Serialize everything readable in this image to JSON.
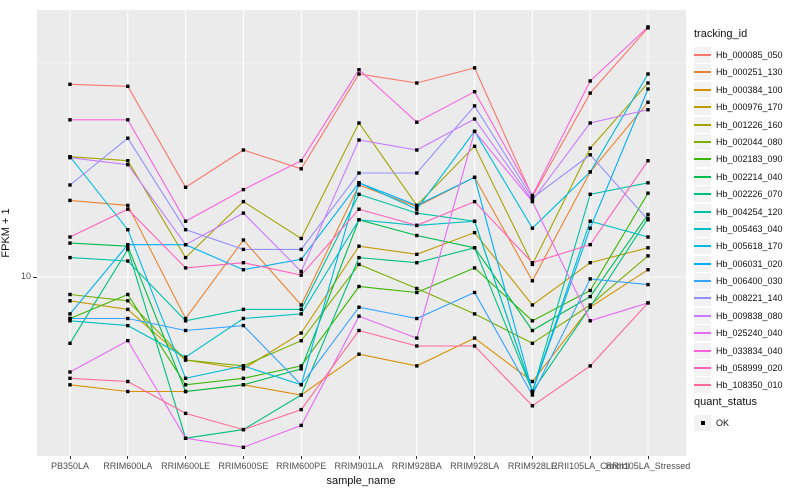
{
  "chart_data": {
    "type": "line",
    "title": "",
    "xlabel": "sample_name",
    "ylabel": "FPKM + 1",
    "y_scale": "log10",
    "y_tick_labels": [
      "10"
    ],
    "y_tick_values": [
      10
    ],
    "grid": true,
    "panel_bg": "#EBEBEB",
    "grid_color": "#FFFFFF",
    "marker": "black-square",
    "legend_position": "right",
    "categories": [
      "PB350LA",
      "RRIM600LA",
      "RRIM600LE",
      "RRIM600SE",
      "RRIM600PE",
      "RRIM901LA",
      "RRIM928BA",
      "RRIM928LA",
      "RRIM928LE",
      "RRII105LA_Control",
      "RRII105LA_Stressed"
    ],
    "series": [
      {
        "name": "Hb_000085_050",
        "color": "#F8766D",
        "values": [
          28.2,
          27.9,
          16.2,
          19.8,
          17.9,
          29.8,
          28.4,
          30.8,
          15.4,
          26.9,
          38.2
        ]
      },
      {
        "name": "Hb_000251_130",
        "color": "#EA8331",
        "values": [
          15.1,
          14.7,
          8.0,
          12.2,
          8.6,
          16.4,
          14.6,
          17.1,
          9.8,
          17.6,
          25.6
        ]
      },
      {
        "name": "Hb_000384_100",
        "color": "#D89000",
        "values": [
          5.6,
          5.4,
          5.4,
          5.6,
          5.3,
          6.6,
          6.2,
          7.2,
          5.7,
          8.5,
          10.4
        ]
      },
      {
        "name": "Hb_000976_170",
        "color": "#C09B00",
        "values": [
          8.8,
          8.4,
          6.4,
          6.1,
          7.4,
          11.8,
          11.3,
          12.7,
          8.6,
          10.8,
          11.7
        ]
      },
      {
        "name": "Hb_001226_160",
        "color": "#A3A500",
        "values": [
          19.1,
          18.7,
          11.1,
          15.0,
          12.3,
          22.9,
          14.7,
          20.2,
          10.7,
          20.0,
          28.4
        ]
      },
      {
        "name": "Hb_002044_080",
        "color": "#7CAE00",
        "values": [
          9.1,
          8.8,
          6.4,
          6.2,
          7.1,
          10.7,
          9.4,
          8.2,
          7.0,
          8.6,
          11.2
        ]
      },
      {
        "name": "Hb_002183_090",
        "color": "#39B600",
        "values": [
          8.0,
          9.1,
          5.6,
          5.8,
          6.2,
          9.5,
          9.2,
          10.5,
          7.9,
          9.3,
          15.7
        ]
      },
      {
        "name": "Hb_002214_040",
        "color": "#00BB4E",
        "values": [
          12.0,
          11.8,
          5.4,
          5.6,
          6.1,
          13.6,
          12.5,
          11.7,
          7.5,
          9.0,
          14.0
        ]
      },
      {
        "name": "Hb_002226_070",
        "color": "#00BF7D",
        "values": [
          7.0,
          11.6,
          4.2,
          4.4,
          5.3,
          11.1,
          10.8,
          11.7,
          5.4,
          8.5,
          13.7
        ]
      },
      {
        "name": "Hb_004254_120",
        "color": "#00C1A3",
        "values": [
          11.1,
          10.9,
          7.9,
          8.4,
          8.4,
          15.6,
          14.1,
          13.5,
          5.4,
          15.6,
          16.6
        ]
      },
      {
        "name": "Hb_005463_040",
        "color": "#00BFC4",
        "values": [
          7.9,
          7.7,
          6.5,
          8.0,
          8.2,
          13.6,
          13.2,
          13.5,
          5.4,
          13.5,
          12.4
        ]
      },
      {
        "name": "Hb_005618_170",
        "color": "#00BAE0",
        "values": [
          19.1,
          12.9,
          5.8,
          6.2,
          5.6,
          16.6,
          14.4,
          21.9,
          13.0,
          17.6,
          29.8
        ]
      },
      {
        "name": "Hb_006031_020",
        "color": "#00B0F6",
        "values": [
          8.2,
          11.9,
          11.9,
          10.4,
          11.0,
          16.6,
          14.7,
          17.1,
          5.4,
          13.0,
          27.5
        ]
      },
      {
        "name": "Hb_006400_030",
        "color": "#35A2FF",
        "values": [
          8.0,
          8.0,
          7.5,
          7.7,
          5.6,
          8.5,
          8.0,
          9.2,
          5.3,
          9.9,
          9.6
        ]
      },
      {
        "name": "Hb_008221_140",
        "color": "#9590FF",
        "values": [
          16.4,
          21.1,
          12.9,
          11.6,
          11.6,
          17.5,
          17.5,
          25.1,
          15.3,
          19.3,
          13.6
        ]
      },
      {
        "name": "Hb_009838_080",
        "color": "#C77CFF",
        "values": [
          19.0,
          18.3,
          11.9,
          14.1,
          10.3,
          20.9,
          19.8,
          23.4,
          15.1,
          22.9,
          24.6
        ]
      },
      {
        "name": "Hb_025240_040",
        "color": "#E76BF3",
        "values": [
          6.0,
          7.1,
          4.2,
          4.0,
          4.5,
          8.1,
          7.2,
          21.9,
          15.0,
          7.9,
          8.7
        ]
      },
      {
        "name": "Hb_033834_040",
        "color": "#FA62DB",
        "values": [
          23.3,
          23.3,
          13.5,
          16.0,
          18.7,
          30.5,
          23.0,
          27.1,
          15.5,
          28.7,
          38.4
        ]
      },
      {
        "name": "Hb_058999_020",
        "color": "#FF62BC",
        "values": [
          12.4,
          14.4,
          10.5,
          10.8,
          10.1,
          14.4,
          13.2,
          15.0,
          10.8,
          11.9,
          18.7
        ]
      },
      {
        "name": "Hb_108350_010",
        "color": "#FF6A98",
        "values": [
          5.8,
          5.7,
          4.8,
          4.4,
          4.9,
          7.5,
          6.9,
          6.9,
          5.0,
          6.2,
          8.7
        ]
      }
    ],
    "legend_title": "tracking_id",
    "legend2_title": "quant_status",
    "legend2_items": [
      "OK"
    ]
  }
}
